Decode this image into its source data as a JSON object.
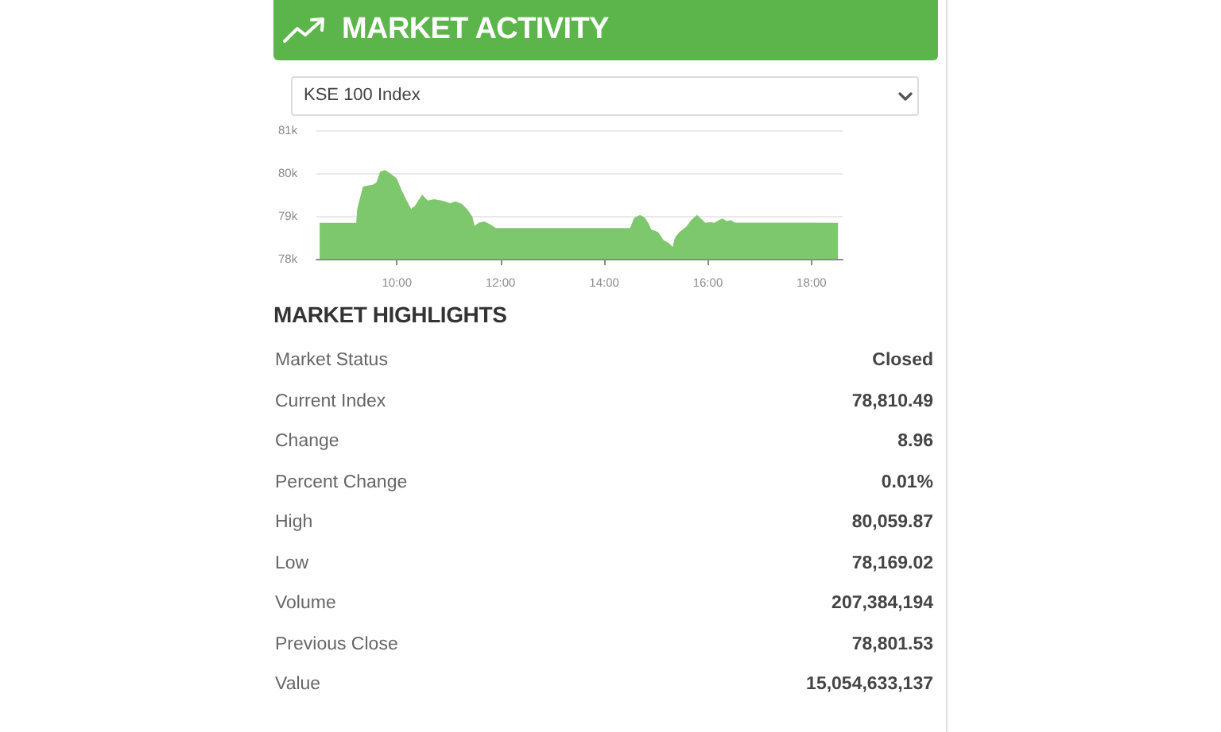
{
  "chart_data": [
    {
      "type": "area",
      "title": "MARKET ACTIVITY",
      "subtitle": "KSE 100 Index",
      "color": "#7dc76d",
      "x": [
        8.51,
        9.23,
        9.25,
        9.3,
        9.36,
        9.44,
        9.54,
        9.62,
        9.69,
        9.77,
        9.85,
        9.98,
        10.08,
        10.18,
        10.27,
        10.36,
        10.49,
        10.59,
        10.72,
        10.87,
        11.03,
        11.13,
        11.25,
        11.35,
        11.44,
        11.49,
        11.59,
        11.69,
        11.79,
        11.9,
        14.51,
        14.59,
        14.69,
        14.77,
        14.84,
        14.9,
        15.03,
        15.13,
        15.25,
        15.33,
        15.38,
        15.46,
        15.59,
        15.69,
        15.79,
        15.87,
        15.95,
        16.05,
        16.13,
        16.21,
        16.28,
        16.36,
        16.44,
        16.51,
        18.51
      ],
      "values": [
        78820,
        78820,
        79160,
        79400,
        79670,
        79690,
        79710,
        79770,
        80020,
        80050,
        79990,
        79870,
        79590,
        79340,
        79140,
        79220,
        79470,
        79340,
        79370,
        79340,
        79280,
        79320,
        79260,
        79140,
        78980,
        78730,
        78830,
        78850,
        78790,
        78700,
        78700,
        78940,
        79000,
        78950,
        78820,
        78670,
        78610,
        78430,
        78340,
        78240,
        78490,
        78610,
        78730,
        78890,
        79000,
        78910,
        78820,
        78840,
        78820,
        78880,
        78920,
        78860,
        78880,
        78830,
        78820
      ],
      "xlim": [
        8.45,
        18.6
      ],
      "xticks": [
        {
          "value": 10,
          "label": "10:00"
        },
        {
          "value": 12,
          "label": "12:00"
        },
        {
          "value": 14,
          "label": "14:00"
        },
        {
          "value": 16,
          "label": "16:00"
        },
        {
          "value": 18,
          "label": "18:00"
        }
      ],
      "ylim": [
        78000,
        81000
      ],
      "yticks": [
        {
          "value": 78000,
          "label": "78k"
        },
        {
          "value": 79000,
          "label": "79k"
        },
        {
          "value": 80000,
          "label": "80k"
        },
        {
          "value": 81000,
          "label": "81k"
        }
      ],
      "grid": "y"
    },
    {
      "type": "other",
      "title": "MARKET HIGHLIGHTS",
      "categories": [
        "Market Status",
        "Current Index",
        "Change",
        "Percent Change",
        "High",
        "Low",
        "Volume",
        "Previous Close",
        "Value"
      ],
      "value_labels": [
        "Closed",
        "78,810.49",
        "8.96",
        "0.01%",
        "80,059.87",
        "78,169.02",
        "207,384,194",
        "78,801.53",
        "15,054,633,137"
      ]
    }
  ]
}
